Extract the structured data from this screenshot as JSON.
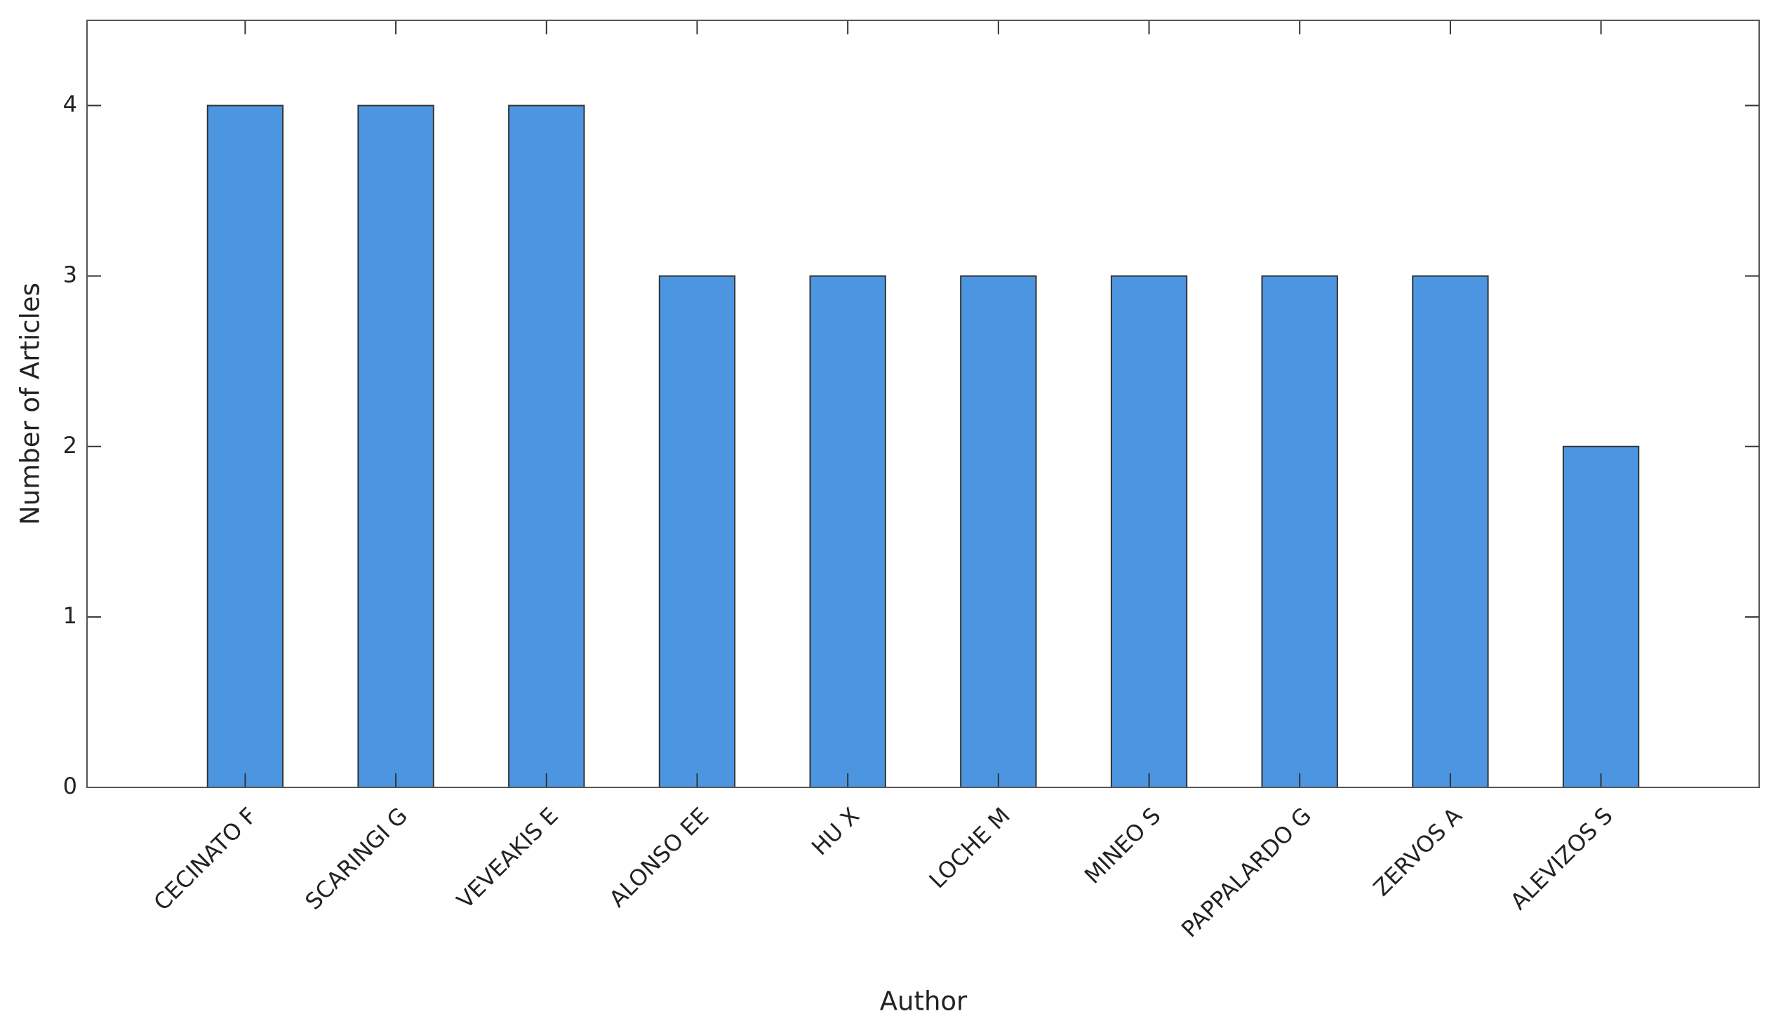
{
  "chart_data": {
    "type": "bar",
    "x_label": "Author",
    "y_label": "Number of Articles",
    "categories": [
      "CECINATO F",
      "SCARINGI G",
      "VEVEAKIS E",
      "ALONSO EE",
      "HU X",
      "LOCHE M",
      "MINEO S",
      "PAPPALARDO G",
      "ZERVOS A",
      "ALEVIZOS S"
    ],
    "values": [
      4,
      4,
      4,
      3,
      3,
      3,
      3,
      3,
      3,
      2
    ],
    "color": "#4c96e1",
    "ylim": [
      0,
      4.5
    ],
    "yticks": [
      0,
      1,
      2,
      3,
      4
    ],
    "grid": false
  }
}
